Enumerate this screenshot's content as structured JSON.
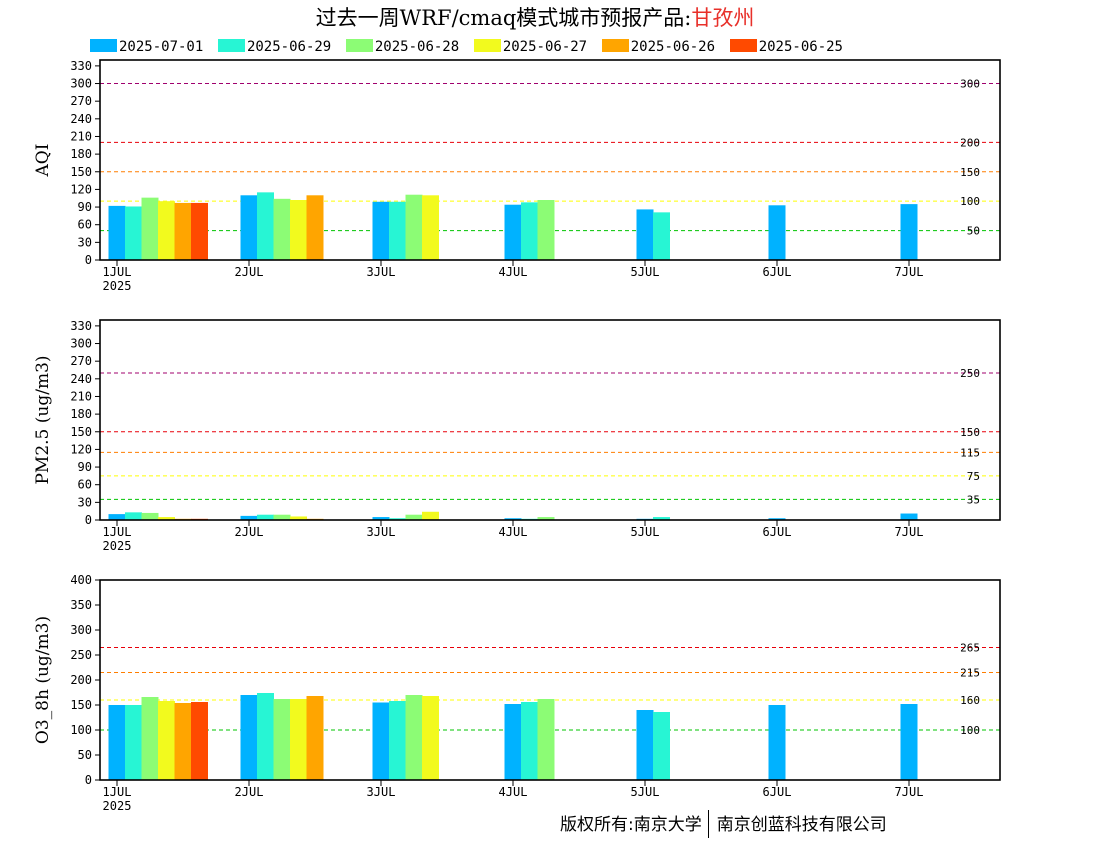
{
  "title": {
    "text": "过去一周WRF/cmaq模式城市预报产品:",
    "city": "甘孜州",
    "city_color": "#e8302a"
  },
  "legend": [
    {
      "label": "2025-07-01",
      "color": "#00b2ff"
    },
    {
      "label": "2025-06-29",
      "color": "#27f5d4"
    },
    {
      "label": "2025-06-28",
      "color": "#8cfc75"
    },
    {
      "label": "2025-06-27",
      "color": "#f2fa1e"
    },
    {
      "label": "2025-06-26",
      "color": "#ffa500"
    },
    {
      "label": "2025-06-25",
      "color": "#ff4a00"
    }
  ],
  "x_ticks": [
    "1JUL",
    "2JUL",
    "3JUL",
    "4JUL",
    "5JUL",
    "6JUL",
    "7JUL"
  ],
  "x_year": "2025",
  "copyright": {
    "left": "版权所有:南京大学",
    "right": "南京创蓝科技有限公司"
  },
  "chart_data": [
    {
      "type": "bar",
      "ylabel": "AQI",
      "ylim": [
        0,
        340
      ],
      "yticks": [
        0,
        30,
        60,
        90,
        120,
        150,
        180,
        210,
        240,
        270,
        300,
        330
      ],
      "thresholds": [
        {
          "value": 300,
          "label": "300",
          "color": "#a0006e"
        },
        {
          "value": 200,
          "label": "200",
          "color": "#e8000a"
        },
        {
          "value": 150,
          "label": "150",
          "color": "#ff7e00"
        },
        {
          "value": 100,
          "label": "100",
          "color": "#ffff00"
        },
        {
          "value": 50,
          "label": "50",
          "color": "#00c400"
        }
      ],
      "categories": [
        "1JUL",
        "2JUL",
        "3JUL",
        "4JUL",
        "5JUL",
        "6JUL",
        "7JUL"
      ],
      "series": [
        {
          "name": "2025-07-01",
          "values": [
            92,
            110,
            99,
            94,
            86,
            93,
            95
          ]
        },
        {
          "name": "2025-06-29",
          "values": [
            91,
            115,
            99,
            98,
            81,
            null,
            null
          ]
        },
        {
          "name": "2025-06-28",
          "values": [
            106,
            104,
            111,
            102,
            null,
            null,
            null
          ]
        },
        {
          "name": "2025-06-27",
          "values": [
            100,
            102,
            110,
            null,
            null,
            null,
            null
          ]
        },
        {
          "name": "2025-06-26",
          "values": [
            97,
            110,
            null,
            null,
            null,
            null,
            null
          ]
        },
        {
          "name": "2025-06-25",
          "values": [
            97,
            null,
            null,
            null,
            null,
            null,
            null
          ]
        }
      ]
    },
    {
      "type": "bar",
      "ylabel": "PM2.5 (ug/m3)",
      "ylim": [
        0,
        340
      ],
      "yticks": [
        0,
        30,
        60,
        90,
        120,
        150,
        180,
        210,
        240,
        270,
        300,
        330
      ],
      "thresholds": [
        {
          "value": 250,
          "label": "250",
          "color": "#a0006e"
        },
        {
          "value": 150,
          "label": "150",
          "color": "#e8000a"
        },
        {
          "value": 115,
          "label": "115",
          "color": "#ff7e00"
        },
        {
          "value": 75,
          "label": "75",
          "color": "#ffff00"
        },
        {
          "value": 35,
          "label": "35",
          "color": "#00c400"
        }
      ],
      "categories": [
        "1JUL",
        "2JUL",
        "3JUL",
        "4JUL",
        "5JUL",
        "6JUL",
        "7JUL"
      ],
      "series": [
        {
          "name": "2025-07-01",
          "values": [
            10,
            7,
            5,
            3,
            2,
            3,
            11
          ]
        },
        {
          "name": "2025-06-29",
          "values": [
            13,
            9,
            3,
            2,
            5,
            null,
            null
          ]
        },
        {
          "name": "2025-06-28",
          "values": [
            12,
            9,
            9,
            5,
            null,
            null,
            null
          ]
        },
        {
          "name": "2025-06-27",
          "values": [
            5,
            6,
            14,
            null,
            null,
            null,
            null
          ]
        },
        {
          "name": "2025-06-26",
          "values": [
            2,
            2,
            null,
            null,
            null,
            null,
            null
          ]
        },
        {
          "name": "2025-06-25",
          "values": [
            2,
            null,
            null,
            null,
            null,
            null,
            null
          ]
        }
      ]
    },
    {
      "type": "bar",
      "ylabel": "O3_8h (ug/m3)",
      "ylim": [
        0,
        400
      ],
      "yticks": [
        0,
        50,
        100,
        150,
        200,
        250,
        300,
        350,
        400
      ],
      "thresholds": [
        {
          "value": 265,
          "label": "265",
          "color": "#e8000a"
        },
        {
          "value": 215,
          "label": "215",
          "color": "#ff7e00"
        },
        {
          "value": 160,
          "label": "160",
          "color": "#ffff00"
        },
        {
          "value": 100,
          "label": "100",
          "color": "#00c400"
        }
      ],
      "categories": [
        "1JUL",
        "2JUL",
        "3JUL",
        "4JUL",
        "5JUL",
        "6JUL",
        "7JUL"
      ],
      "series": [
        {
          "name": "2025-07-01",
          "values": [
            150,
            170,
            155,
            152,
            140,
            150,
            152
          ]
        },
        {
          "name": "2025-06-29",
          "values": [
            150,
            174,
            158,
            156,
            136,
            null,
            null
          ]
        },
        {
          "name": "2025-06-28",
          "values": [
            166,
            162,
            170,
            162,
            null,
            null,
            null
          ]
        },
        {
          "name": "2025-06-27",
          "values": [
            158,
            162,
            168,
            null,
            null,
            null,
            null
          ]
        },
        {
          "name": "2025-06-26",
          "values": [
            154,
            168,
            null,
            null,
            null,
            null,
            null
          ]
        },
        {
          "name": "2025-06-25",
          "values": [
            156,
            null,
            null,
            null,
            null,
            null,
            null
          ]
        }
      ]
    }
  ]
}
